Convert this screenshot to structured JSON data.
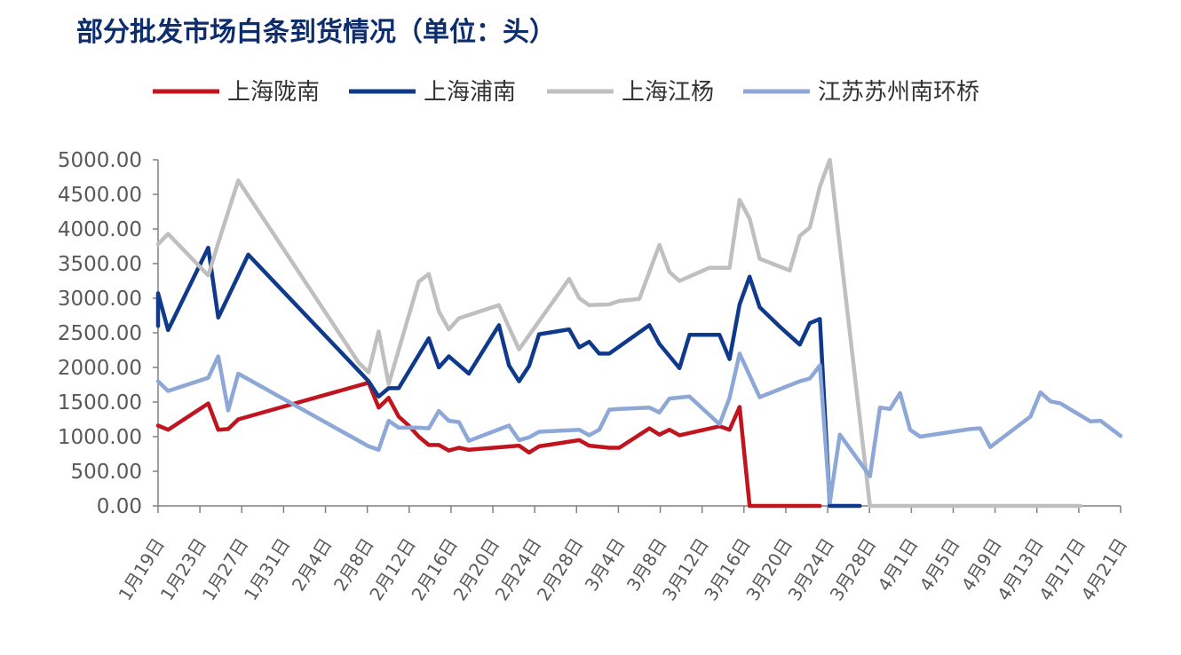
{
  "chart_data": {
    "type": "line",
    "title": "部分批发市场白条到货情况（单位：头）",
    "xlabel": "",
    "ylabel": "",
    "ylim": [
      0,
      5000
    ],
    "ytick_step": 500,
    "ytick_labels": [
      "0.00",
      "500.00",
      "1000.00",
      "1500.00",
      "2000.00",
      "2500.00",
      "3000.00",
      "3500.00",
      "4000.00",
      "4500.00",
      "5000.00"
    ],
    "x_start": "2022-01-19",
    "x_end": "2022-04-21",
    "x_tick_labels": [
      "1月19日",
      "1月23日",
      "1月27日",
      "1月31日",
      "2月4日",
      "2月8日",
      "2月12日",
      "2月16日",
      "2月20日",
      "2月24日",
      "2月28日",
      "3月4日",
      "3月8日",
      "3月12日",
      "3月16日",
      "3月20日",
      "3月24日",
      "3月28日",
      "4月1日",
      "4月5日",
      "4月9日",
      "4月13日",
      "4月17日",
      "4月21日"
    ],
    "grid": false,
    "legend_position": "top",
    "series": [
      {
        "name": "上海陇南",
        "color": "#c0151f",
        "points": [
          [
            "2022-01-19",
            1160
          ],
          [
            "2022-01-20",
            1100
          ],
          [
            "2022-01-24",
            1480
          ],
          [
            "2022-01-25",
            1100
          ],
          [
            "2022-01-26",
            1110
          ],
          [
            "2022-01-27",
            1250
          ],
          [
            "2022-02-09",
            1780
          ],
          [
            "2022-02-10",
            1420
          ],
          [
            "2022-02-11",
            1560
          ],
          [
            "2022-02-12",
            1290
          ],
          [
            "2022-02-13",
            1160
          ],
          [
            "2022-02-14",
            1000
          ],
          [
            "2022-02-15",
            880
          ],
          [
            "2022-02-16",
            880
          ],
          [
            "2022-02-17",
            800
          ],
          [
            "2022-02-18",
            840
          ],
          [
            "2022-02-19",
            810
          ],
          [
            "2022-02-24",
            870
          ],
          [
            "2022-02-25",
            770
          ],
          [
            "2022-02-26",
            860
          ],
          [
            "2022-03-02",
            950
          ],
          [
            "2022-03-03",
            870
          ],
          [
            "2022-03-05",
            840
          ],
          [
            "2022-03-06",
            840
          ],
          [
            "2022-03-09",
            1120
          ],
          [
            "2022-03-10",
            1030
          ],
          [
            "2022-03-11",
            1100
          ],
          [
            "2022-03-12",
            1020
          ],
          [
            "2022-03-16",
            1150
          ],
          [
            "2022-03-17",
            1100
          ],
          [
            "2022-03-18",
            1430
          ],
          [
            "2022-03-19",
            0
          ],
          [
            "2022-03-26",
            0
          ]
        ]
      },
      {
        "name": "上海浦南",
        "color": "#0f3a8c",
        "points": [
          [
            "2022-01-19",
            2600
          ],
          [
            "2022-01-19",
            3070
          ],
          [
            "2022-01-20",
            2540
          ],
          [
            "2022-01-24",
            3730
          ],
          [
            "2022-01-25",
            2720
          ],
          [
            "2022-01-28",
            3630
          ],
          [
            "2022-02-09",
            1800
          ],
          [
            "2022-02-10",
            1580
          ],
          [
            "2022-02-11",
            1700
          ],
          [
            "2022-02-12",
            1700
          ],
          [
            "2022-02-15",
            2420
          ],
          [
            "2022-02-16",
            2000
          ],
          [
            "2022-02-17",
            2160
          ],
          [
            "2022-02-19",
            1910
          ],
          [
            "2022-02-22",
            2610
          ],
          [
            "2022-02-23",
            2030
          ],
          [
            "2022-02-24",
            1800
          ],
          [
            "2022-02-25",
            2020
          ],
          [
            "2022-02-26",
            2480
          ],
          [
            "2022-03-01",
            2550
          ],
          [
            "2022-03-02",
            2290
          ],
          [
            "2022-03-03",
            2370
          ],
          [
            "2022-03-04",
            2200
          ],
          [
            "2022-03-05",
            2200
          ],
          [
            "2022-03-09",
            2610
          ],
          [
            "2022-03-10",
            2340
          ],
          [
            "2022-03-12",
            1990
          ],
          [
            "2022-03-13",
            2470
          ],
          [
            "2022-03-16",
            2470
          ],
          [
            "2022-03-17",
            2120
          ],
          [
            "2022-03-18",
            2910
          ],
          [
            "2022-03-19",
            3310
          ],
          [
            "2022-03-20",
            2870
          ],
          [
            "2022-03-22",
            2590
          ],
          [
            "2022-03-24",
            2330
          ],
          [
            "2022-03-25",
            2640
          ],
          [
            "2022-03-26",
            2700
          ],
          [
            "2022-03-27",
            0
          ],
          [
            "2022-03-30",
            0
          ]
        ]
      },
      {
        "name": "上海江杨",
        "color": "#bfbfbf",
        "points": [
          [
            "2022-01-19",
            3780
          ],
          [
            "2022-01-20",
            3930
          ],
          [
            "2022-01-24",
            3330
          ],
          [
            "2022-01-25",
            3800
          ],
          [
            "2022-01-27",
            4700
          ],
          [
            "2022-02-08",
            2070
          ],
          [
            "2022-02-09",
            1930
          ],
          [
            "2022-02-10",
            2520
          ],
          [
            "2022-02-11",
            1760
          ],
          [
            "2022-02-14",
            3240
          ],
          [
            "2022-02-15",
            3350
          ],
          [
            "2022-02-16",
            2810
          ],
          [
            "2022-02-17",
            2550
          ],
          [
            "2022-02-18",
            2710
          ],
          [
            "2022-02-22",
            2900
          ],
          [
            "2022-02-24",
            2260
          ],
          [
            "2022-03-01",
            3280
          ],
          [
            "2022-03-02",
            3000
          ],
          [
            "2022-03-03",
            2900
          ],
          [
            "2022-03-05",
            2910
          ],
          [
            "2022-03-06",
            2960
          ],
          [
            "2022-03-08",
            2990
          ],
          [
            "2022-03-10",
            3770
          ],
          [
            "2022-03-11",
            3380
          ],
          [
            "2022-03-12",
            3250
          ],
          [
            "2022-03-15",
            3440
          ],
          [
            "2022-03-17",
            3440
          ],
          [
            "2022-03-18",
            4420
          ],
          [
            "2022-03-19",
            4150
          ],
          [
            "2022-03-20",
            3570
          ],
          [
            "2022-03-23",
            3400
          ],
          [
            "2022-03-24",
            3900
          ],
          [
            "2022-03-25",
            4020
          ],
          [
            "2022-03-26",
            4610
          ],
          [
            "2022-03-27",
            5000
          ],
          [
            "2022-03-31",
            0
          ],
          [
            "2022-04-21",
            0
          ]
        ]
      },
      {
        "name": "江苏苏州南环桥",
        "color": "#8da7d6",
        "points": [
          [
            "2022-01-19",
            1800
          ],
          [
            "2022-01-20",
            1660
          ],
          [
            "2022-01-24",
            1850
          ],
          [
            "2022-01-25",
            2160
          ],
          [
            "2022-01-26",
            1380
          ],
          [
            "2022-01-27",
            1910
          ],
          [
            "2022-02-09",
            860
          ],
          [
            "2022-02-10",
            810
          ],
          [
            "2022-02-11",
            1230
          ],
          [
            "2022-02-12",
            1130
          ],
          [
            "2022-02-14",
            1130
          ],
          [
            "2022-02-15",
            1120
          ],
          [
            "2022-02-16",
            1370
          ],
          [
            "2022-02-17",
            1230
          ],
          [
            "2022-02-18",
            1210
          ],
          [
            "2022-02-19",
            940
          ],
          [
            "2022-02-23",
            1160
          ],
          [
            "2022-02-24",
            950
          ],
          [
            "2022-02-25",
            990
          ],
          [
            "2022-02-26",
            1070
          ],
          [
            "2022-03-02",
            1100
          ],
          [
            "2022-03-03",
            1020
          ],
          [
            "2022-03-04",
            1100
          ],
          [
            "2022-03-05",
            1390
          ],
          [
            "2022-03-06",
            1400
          ],
          [
            "2022-03-09",
            1420
          ],
          [
            "2022-03-10",
            1350
          ],
          [
            "2022-03-11",
            1550
          ],
          [
            "2022-03-13",
            1580
          ],
          [
            "2022-03-16",
            1180
          ],
          [
            "2022-03-17",
            1560
          ],
          [
            "2022-03-18",
            2200
          ],
          [
            "2022-03-20",
            1570
          ],
          [
            "2022-03-24",
            1800
          ],
          [
            "2022-03-25",
            1840
          ],
          [
            "2022-03-26",
            2030
          ],
          [
            "2022-03-27",
            50
          ],
          [
            "2022-03-28",
            1030
          ],
          [
            "2022-03-31",
            430
          ],
          [
            "2022-04-01",
            1420
          ],
          [
            "2022-04-02",
            1400
          ],
          [
            "2022-04-03",
            1630
          ],
          [
            "2022-04-04",
            1100
          ],
          [
            "2022-04-05",
            1000
          ],
          [
            "2022-04-10",
            1110
          ],
          [
            "2022-04-11",
            1120
          ],
          [
            "2022-04-12",
            850
          ],
          [
            "2022-04-16",
            1290
          ],
          [
            "2022-04-17",
            1640
          ],
          [
            "2022-04-18",
            1510
          ],
          [
            "2022-04-19",
            1480
          ],
          [
            "2022-04-22",
            1220
          ],
          [
            "2022-04-23",
            1230
          ],
          [
            "2022-04-25",
            1010
          ]
        ]
      }
    ]
  }
}
